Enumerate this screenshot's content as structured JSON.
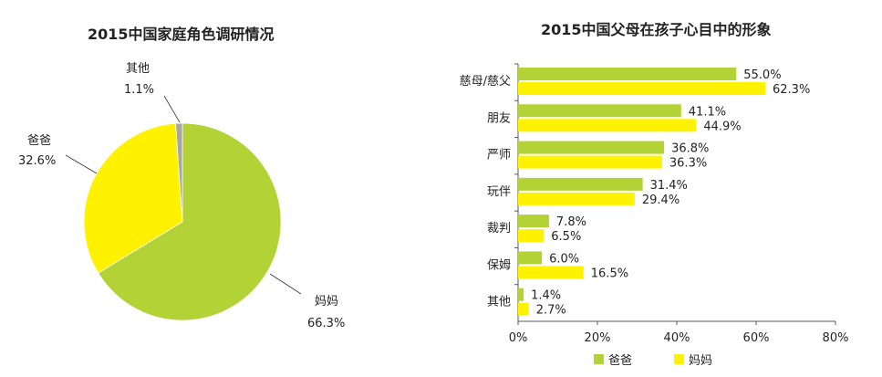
{
  "chart_data": [
    {
      "type": "pie",
      "title": "2015中国家庭角色调研情况",
      "slices": [
        {
          "label": "妈妈",
          "value": 66.3,
          "value_text": "66.3%",
          "color": "#b2d235"
        },
        {
          "label": "爸爸",
          "value": 32.6,
          "value_text": "32.6%",
          "color": "#fff200"
        },
        {
          "label": "其他",
          "value": 1.1,
          "value_text": "1.1%",
          "color": "#a6a6a6"
        }
      ]
    },
    {
      "type": "bar",
      "orientation": "horizontal",
      "title": "2015中国父母在孩子心目中的形象",
      "categories": [
        "慈母/慈父",
        "朋友",
        "严师",
        "玩伴",
        "裁判",
        "保姆",
        "其他"
      ],
      "series": [
        {
          "name": "爸爸",
          "color": "#b2d235",
          "values": [
            55.0,
            41.1,
            36.8,
            31.4,
            7.8,
            6.0,
            1.4
          ],
          "labels": [
            "55.0%",
            "41.1%",
            "36.8%",
            "31.4%",
            "7.8%",
            "6.0%",
            "1.4%"
          ]
        },
        {
          "name": "妈妈",
          "color": "#fff200",
          "values": [
            62.3,
            44.9,
            36.3,
            29.4,
            6.5,
            16.5,
            2.7
          ],
          "labels": [
            "62.3%",
            "44.9%",
            "36.3%",
            "29.4%",
            "6.5%",
            "16.5%",
            "2.7%"
          ]
        }
      ],
      "xlim": [
        0,
        80
      ],
      "x_ticks": [
        "0%",
        "20%",
        "40%",
        "60%",
        "80%"
      ],
      "legend_position": "bottom",
      "grid": false
    }
  ]
}
